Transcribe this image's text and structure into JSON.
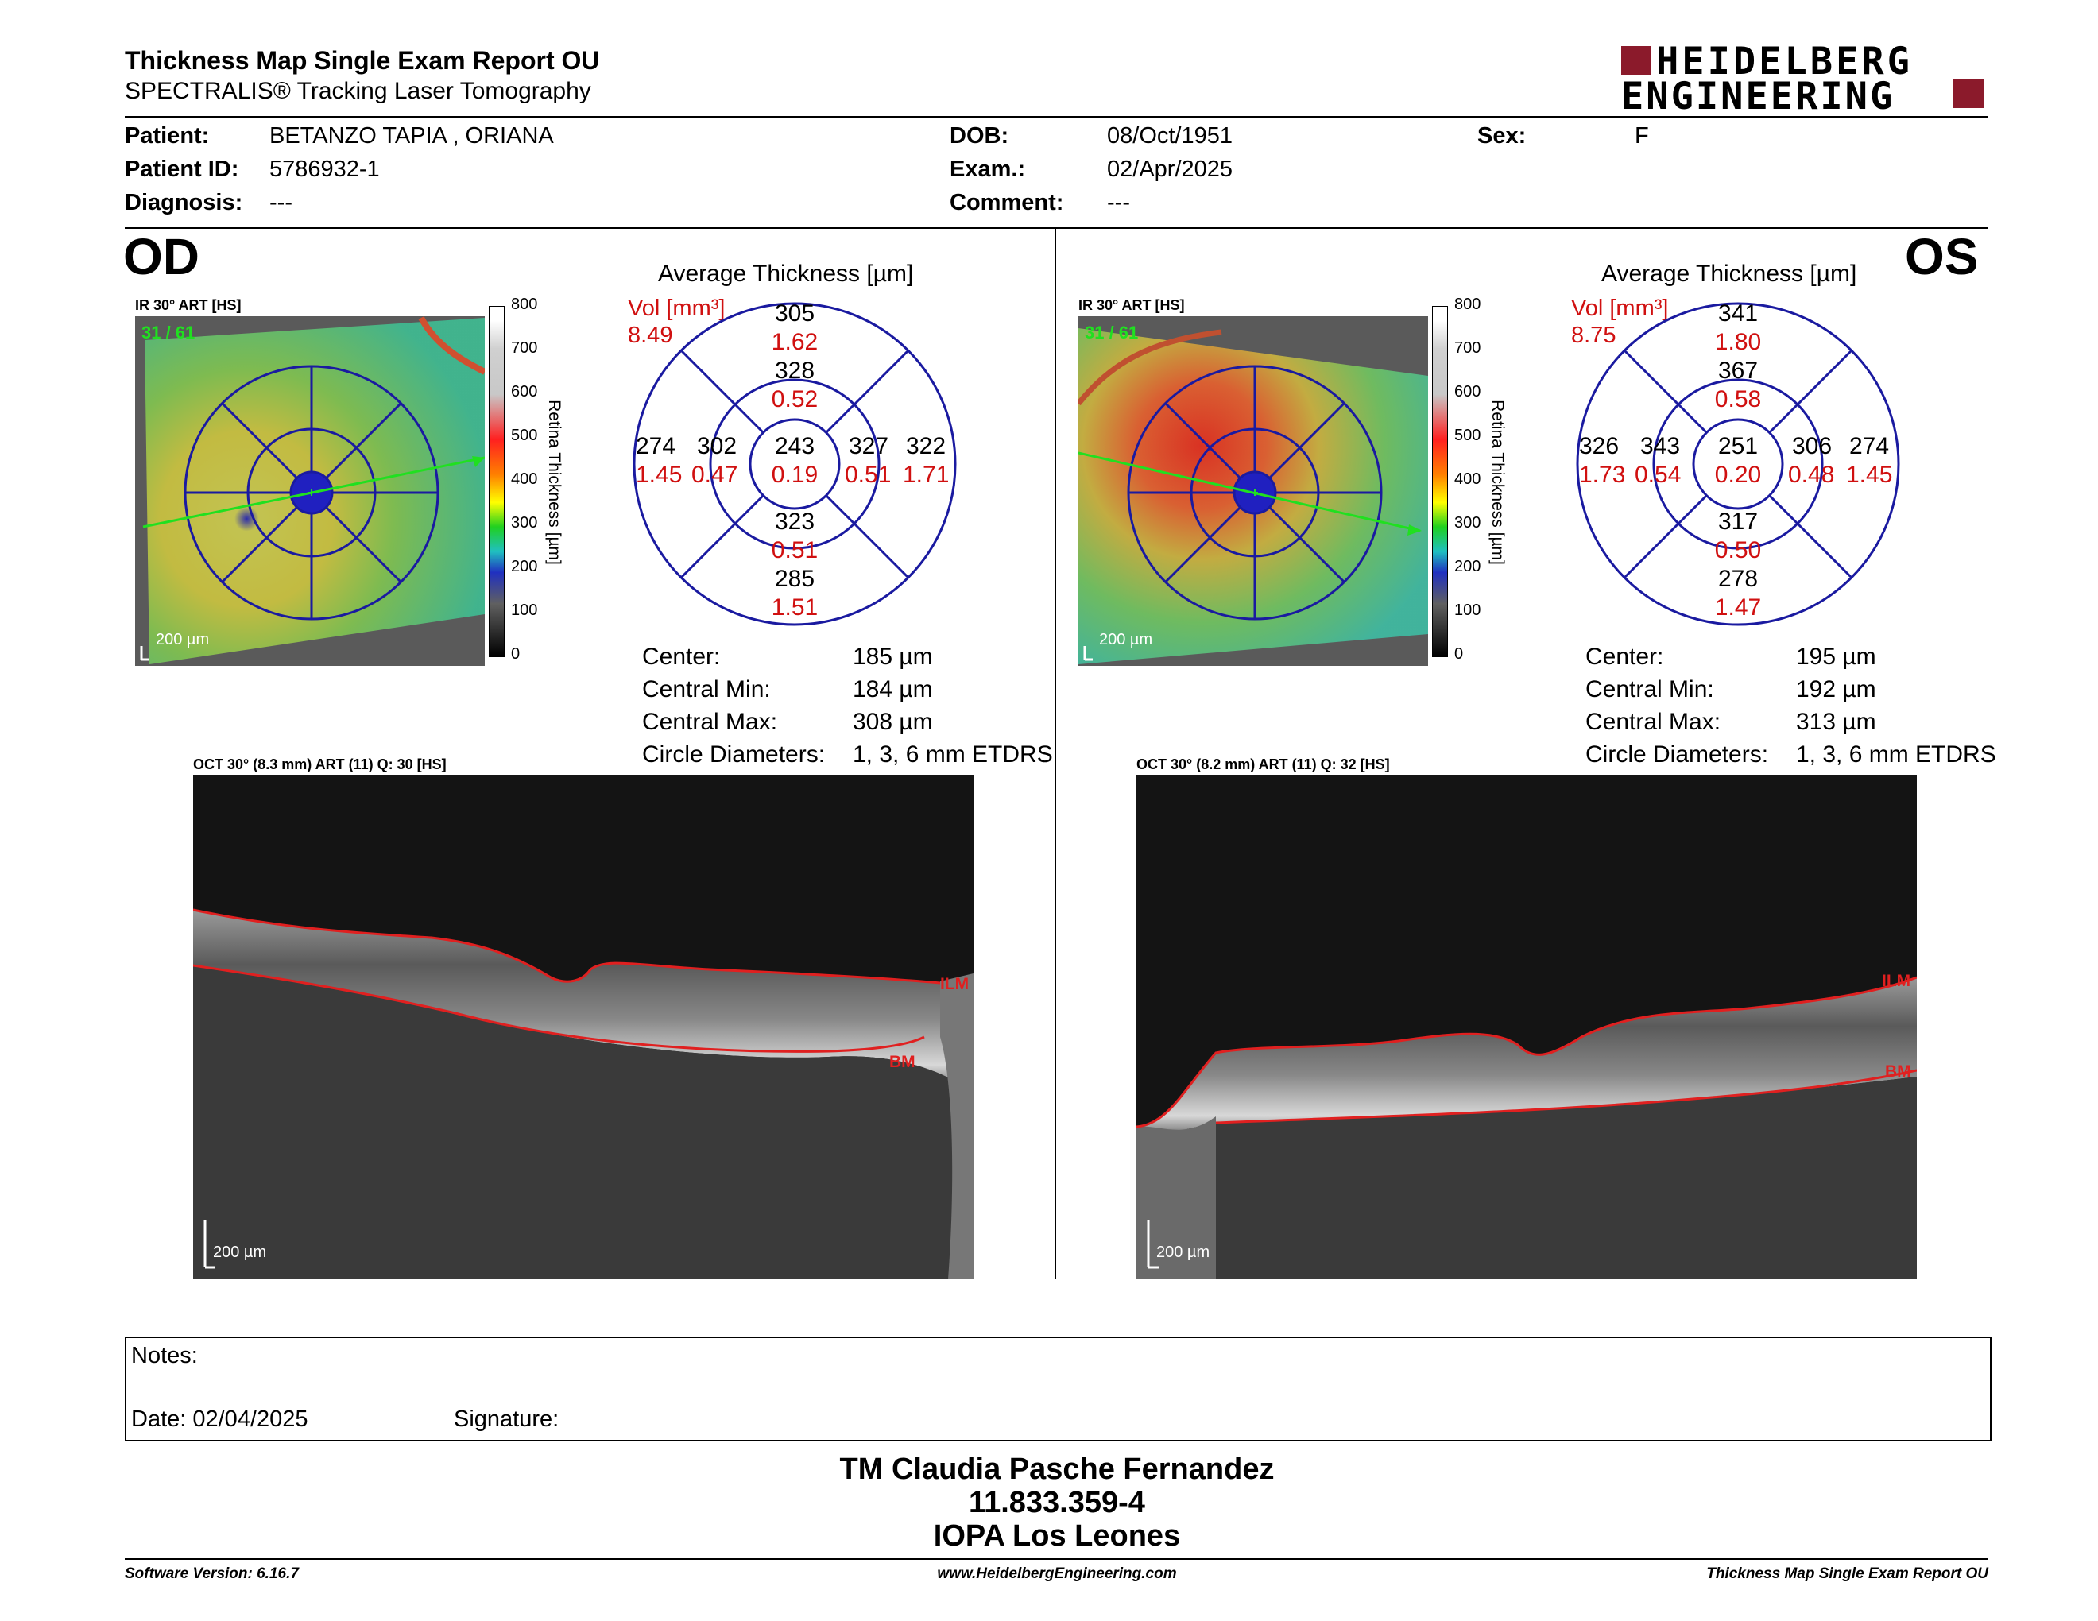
{
  "header": {
    "title": "Thickness Map Single Exam Report OU",
    "subtitle": "SPECTRALIS® Tracking Laser Tomography",
    "logo_line1": "HEIDELBERG",
    "logo_line2": "ENGINEERING"
  },
  "patient": {
    "patient_label": "Patient:",
    "patient_value": "BETANZO TAPIA , ORIANA",
    "id_label": "Patient ID:",
    "id_value": "5786932-1",
    "diagnosis_label": "Diagnosis:",
    "diagnosis_value": "---",
    "dob_label": "DOB:",
    "dob_value": "08/Oct/1951",
    "exam_label": "Exam.:",
    "exam_value": "02/Apr/2025",
    "comment_label": "Comment:",
    "comment_value": "---",
    "sex_label": "Sex:",
    "sex_value": "F"
  },
  "od": {
    "eye": "OD",
    "ir_label": "IR 30° ART [HS]",
    "frame": "31 / 61",
    "scale": "200 µm",
    "avg_title": "Average Thickness [µm]",
    "vol_label": "Vol [mm³]",
    "vol_value": "8.49",
    "grid": {
      "outer_sup": "305",
      "outer_sup_vol": "1.62",
      "inner_sup": "328",
      "inner_sup_vol": "0.52",
      "outer_left": "274",
      "outer_left_vol": "1.45",
      "inner_left": "302",
      "inner_left_vol": "0.47",
      "center": "243",
      "center_vol": "0.19",
      "inner_right": "327",
      "inner_right_vol": "0.51",
      "outer_right": "322",
      "outer_right_vol": "1.71",
      "inner_inf": "323",
      "inner_inf_vol": "0.51",
      "outer_inf": "285",
      "outer_inf_vol": "1.51"
    },
    "stats": {
      "center_label": "Center:",
      "center_value": "185 µm",
      "min_label": "Central Min:",
      "min_value": "184 µm",
      "max_label": "Central Max:",
      "max_value": "308 µm",
      "diam_label": "Circle Diameters:",
      "diam_value": "1, 3, 6 mm ETDRS"
    },
    "oct_label": "OCT 30° (8.3 mm) ART (11) Q: 30 [HS]",
    "oct_scale": "200 µm",
    "ilm": "ILM",
    "bm": "BM"
  },
  "os": {
    "eye": "OS",
    "ir_label": "IR 30° ART [HS]",
    "frame": "31 / 61",
    "scale": "200 µm",
    "avg_title": "Average Thickness [µm]",
    "vol_label": "Vol [mm³]",
    "vol_value": "8.75",
    "grid": {
      "outer_sup": "341",
      "outer_sup_vol": "1.80",
      "inner_sup": "367",
      "inner_sup_vol": "0.58",
      "outer_left": "326",
      "outer_left_vol": "1.73",
      "inner_left": "343",
      "inner_left_vol": "0.54",
      "center": "251",
      "center_vol": "0.20",
      "inner_right": "306",
      "inner_right_vol": "0.48",
      "outer_right": "274",
      "outer_right_vol": "1.45",
      "inner_inf": "317",
      "inner_inf_vol": "0.50",
      "outer_inf": "278",
      "outer_inf_vol": "1.47"
    },
    "stats": {
      "center_label": "Center:",
      "center_value": "195 µm",
      "min_label": "Central Min:",
      "min_value": "192 µm",
      "max_label": "Central Max:",
      "max_value": "313 µm",
      "diam_label": "Circle Diameters:",
      "diam_value": "1, 3, 6 mm ETDRS"
    },
    "oct_label": "OCT 30° (8.2 mm) ART (11) Q: 32 [HS]",
    "oct_scale": "200 µm",
    "ilm": "ILM",
    "bm": "BM"
  },
  "colorbar": {
    "ticks": [
      "800",
      "700",
      "600",
      "500",
      "400",
      "300",
      "200",
      "100",
      "0"
    ],
    "axis_label": "Retina  Thickness [µm]"
  },
  "notes": {
    "notes_label": "Notes:",
    "date_label": "Date: 02/04/2025",
    "signature_label": "Signature:"
  },
  "signer": {
    "name": "TM Claudia Pasche Fernandez",
    "id": "11.833.359-4",
    "org": "IOPA Los Leones"
  },
  "footer": {
    "version": "Software Version: 6.16.7",
    "url": "www.HeidelbergEngineering.com",
    "report": "Thickness Map Single Exam Report OU"
  },
  "colors": {
    "vol_red": "#d01010",
    "grid_blue": "#1a1aa0",
    "logo_red": "#8b1a2b",
    "oct_red": "#e02020"
  }
}
